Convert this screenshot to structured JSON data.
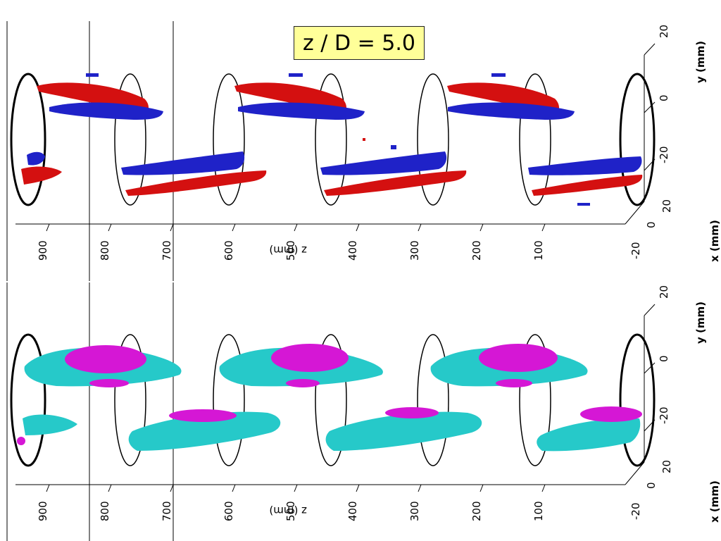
{
  "title_label": "z / D = 5.0",
  "colors": {
    "panel1_series_a": "#d41010",
    "panel1_series_b": "#1f22c8",
    "panel2_series_a": "#26c9c9",
    "panel2_series_b": "#d517d5",
    "frame": "#000000"
  },
  "panels": [
    {
      "z_axis_label": "z (mm)",
      "z_ticks": [
        "900",
        "800",
        "700",
        "600",
        "500",
        "400",
        "300",
        "200",
        "100"
      ],
      "x_axis_label": "x (mm)",
      "x_ticks": [
        "-20",
        "0",
        "20"
      ],
      "y_axis_label": "y (mm)",
      "y_ticks": [
        "20",
        "0",
        "-20"
      ]
    },
    {
      "z_axis_label": "z (mm)",
      "z_ticks": [
        "900",
        "800",
        "700",
        "600",
        "500",
        "400",
        "300",
        "200",
        "100"
      ],
      "x_axis_label": "x (mm)",
      "x_ticks": [
        "-20",
        "0",
        "20"
      ],
      "y_axis_label": "y (mm)",
      "y_ticks": [
        "20",
        "0",
        "-20"
      ]
    }
  ]
}
